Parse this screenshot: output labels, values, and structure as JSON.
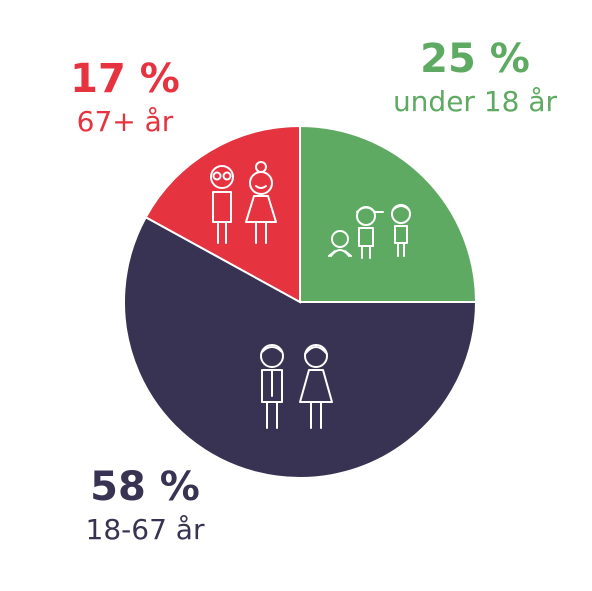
{
  "chart_data": {
    "type": "pie",
    "title": "",
    "slices": [
      {
        "value_label": "25 %",
        "label": "under 18 år",
        "value": 25,
        "color": "#5faa62"
      },
      {
        "value_label": "58 %",
        "label": "18-67 år",
        "value": 58,
        "color": "#383352"
      },
      {
        "value_label": "17 %",
        "label": "67+ år",
        "value": 17,
        "color": "#e63340"
      }
    ],
    "start": "12 o'clock",
    "direction": "clockwise",
    "icons": [
      "children-figures-icon",
      "adult-figures-icon",
      "senior-figures-icon"
    ]
  }
}
